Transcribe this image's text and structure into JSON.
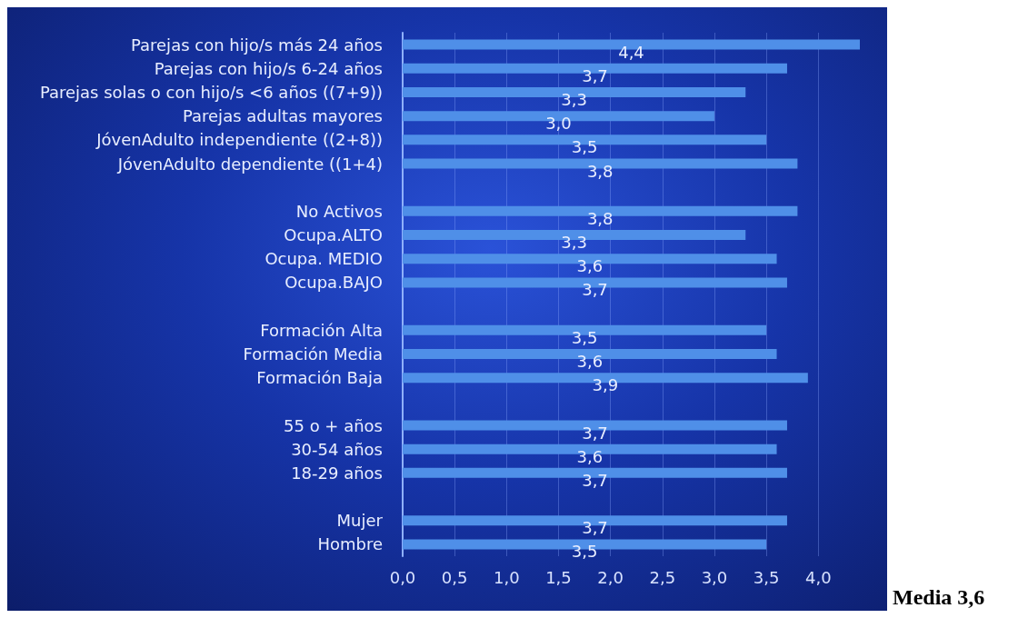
{
  "chart_data": {
    "type": "bar",
    "orientation": "horizontal",
    "categories": [
      "Parejas con hijo/s más 24 años",
      "Parejas con hijo/s 6-24 años",
      "Parejas solas o con hijo/s <6 años ((7+9))",
      "Parejas adultas mayores",
      "JóvenAdulto independiente ((2+8))",
      "JóvenAdulto dependiente ((1+4)",
      null,
      "No Activos",
      "Ocupa.ALTO",
      "Ocupa. MEDIO",
      "Ocupa.BAJO",
      null,
      "Formación Alta",
      "Formación Media",
      "Formación Baja",
      null,
      "55 o + años",
      "30-54 años",
      "18-29 años",
      null,
      "Mujer",
      "Hombre"
    ],
    "values": [
      4.4,
      3.7,
      3.3,
      3.0,
      3.5,
      3.8,
      null,
      3.8,
      3.3,
      3.6,
      3.7,
      null,
      3.5,
      3.6,
      3.9,
      null,
      3.7,
      3.6,
      3.7,
      null,
      3.7,
      3.5
    ],
    "value_labels": [
      "4,4",
      "3,7",
      "3,3",
      "3,0",
      "3,5",
      "3,8",
      null,
      "3,8",
      "3,3",
      "3,6",
      "3,7",
      null,
      "3,5",
      "3,6",
      "3,9",
      null,
      "3,7",
      "3,6",
      "3,7",
      null,
      "3,7",
      "3,5"
    ],
    "color": "#4f8fe8",
    "xlim": [
      0,
      4.4
    ],
    "xticks": [
      {
        "value": 0,
        "label": "0,0"
      },
      {
        "value": 0.5,
        "label": "0,5"
      },
      {
        "value": 1,
        "label": "1,0"
      },
      {
        "value": 1.5,
        "label": "1,5"
      },
      {
        "value": 2,
        "label": "2,0"
      },
      {
        "value": 2.5,
        "label": "2,5"
      },
      {
        "value": 3,
        "label": "3,0"
      },
      {
        "value": 3.5,
        "label": "3,5"
      },
      {
        "value": 4,
        "label": "4,0"
      }
    ],
    "grid": "x",
    "annotations": [
      "Media 3,6"
    ]
  }
}
